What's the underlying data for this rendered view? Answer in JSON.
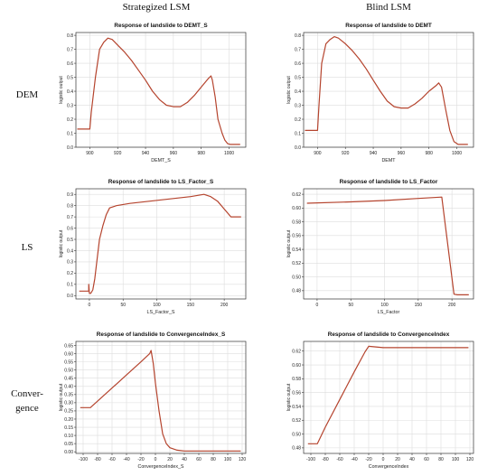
{
  "columns": [
    "Strategized LSM",
    "Blind LSM"
  ],
  "rows": [
    {
      "lines": [
        "DEM"
      ]
    },
    {
      "lines": [
        "LS"
      ]
    },
    {
      "lines": [
        "Conver-",
        "gence"
      ]
    }
  ],
  "colors": {
    "line": "#b5442e",
    "grid": "#dddddd",
    "axis": "#333333"
  },
  "chart_data": [
    {
      "type": "line",
      "title": "Response of landslide to DEMT_S",
      "xlabel": "DEMT_S",
      "ylabel": "logistic output",
      "xlim": [
        890,
        1012
      ],
      "ylim": [
        0,
        0.82
      ],
      "xticks": [
        900,
        920,
        940,
        960,
        980,
        1000
      ],
      "yticks": [
        0,
        0.1,
        0.2,
        0.3,
        0.4,
        0.5,
        0.6,
        0.7,
        0.8
      ],
      "ytick_labels": [
        "0.0",
        "0.1",
        "0.2",
        "0.3",
        "0.4",
        "0.5",
        "0.6",
        "0.7",
        "0.8"
      ],
      "x": [
        891,
        900,
        901,
        904,
        907,
        910,
        913,
        916,
        920,
        925,
        930,
        935,
        940,
        945,
        950,
        955,
        960,
        965,
        970,
        975,
        980,
        985,
        987,
        988,
        990,
        992,
        995,
        997,
        999,
        1001,
        1005,
        1008
      ],
      "y": [
        0.13,
        0.13,
        0.25,
        0.5,
        0.7,
        0.75,
        0.78,
        0.77,
        0.73,
        0.68,
        0.62,
        0.55,
        0.48,
        0.4,
        0.34,
        0.3,
        0.29,
        0.29,
        0.32,
        0.37,
        0.43,
        0.49,
        0.51,
        0.48,
        0.36,
        0.2,
        0.1,
        0.05,
        0.025,
        0.02,
        0.02,
        0.02
      ]
    },
    {
      "type": "line",
      "title": "Response of landslide to DEMT",
      "xlabel": "DEMT",
      "ylabel": "logistic output",
      "xlim": [
        890,
        1012
      ],
      "ylim": [
        0,
        0.82
      ],
      "xticks": [
        900,
        920,
        940,
        960,
        980,
        1000
      ],
      "yticks": [
        0,
        0.1,
        0.2,
        0.3,
        0.4,
        0.5,
        0.6,
        0.7,
        0.8
      ],
      "ytick_labels": [
        "0.0",
        "0.1",
        "0.2",
        "0.3",
        "0.4",
        "0.5",
        "0.6",
        "0.7",
        "0.8"
      ],
      "x": [
        891,
        900,
        901,
        903,
        906,
        909,
        912,
        915,
        920,
        925,
        930,
        935,
        940,
        945,
        950,
        955,
        960,
        965,
        970,
        975,
        980,
        985,
        987,
        989,
        992,
        995,
        998,
        1001,
        1005,
        1008
      ],
      "y": [
        0.12,
        0.12,
        0.3,
        0.6,
        0.74,
        0.77,
        0.79,
        0.78,
        0.74,
        0.69,
        0.63,
        0.56,
        0.48,
        0.4,
        0.33,
        0.29,
        0.28,
        0.28,
        0.31,
        0.35,
        0.4,
        0.44,
        0.46,
        0.43,
        0.27,
        0.12,
        0.04,
        0.02,
        0.02,
        0.02
      ]
    },
    {
      "type": "line",
      "title": "Response of landslide to LS_Factor_S",
      "xlabel": "LS_Factor_S",
      "ylabel": "logistic output",
      "xlim": [
        -20,
        232
      ],
      "ylim": [
        -0.03,
        0.95
      ],
      "xticks": [
        0,
        50,
        100,
        150,
        200
      ],
      "yticks": [
        0,
        0.1,
        0.2,
        0.3,
        0.4,
        0.5,
        0.6,
        0.7,
        0.8,
        0.9
      ],
      "ytick_labels": [
        "0.0",
        "0.1",
        "0.2",
        "0.3",
        "0.4",
        "0.5",
        "0.6",
        "0.7",
        "0.8",
        "0.9"
      ],
      "x": [
        -15,
        -1,
        -1,
        0,
        2,
        5,
        8,
        11,
        15,
        20,
        25,
        30,
        40,
        60,
        90,
        120,
        150,
        170,
        180,
        190,
        200,
        210,
        225
      ],
      "y": [
        0.04,
        0.04,
        0.1,
        0.02,
        0.02,
        0.05,
        0.15,
        0.3,
        0.5,
        0.62,
        0.72,
        0.78,
        0.8,
        0.82,
        0.84,
        0.86,
        0.88,
        0.9,
        0.88,
        0.84,
        0.77,
        0.7,
        0.7
      ]
    },
    {
      "type": "line",
      "title": "Response of landslide to LS_Factor",
      "xlabel": "LS_Factor",
      "ylabel": "logistic output",
      "xlim": [
        -20,
        232
      ],
      "ylim": [
        0.468,
        0.628
      ],
      "xticks": [
        0,
        50,
        100,
        150,
        200
      ],
      "yticks": [
        0.48,
        0.5,
        0.52,
        0.54,
        0.56,
        0.58,
        0.6,
        0.62
      ],
      "ytick_labels": [
        "0.48",
        "0.50",
        "0.52",
        "0.54",
        "0.56",
        "0.58",
        "0.60",
        "0.62"
      ],
      "x": [
        -15,
        50,
        100,
        150,
        185,
        203,
        208,
        225
      ],
      "y": [
        0.607,
        0.609,
        0.611,
        0.614,
        0.616,
        0.475,
        0.474,
        0.474
      ]
    },
    {
      "type": "line",
      "title": "Response of landslide to ConvergenceIndex_S",
      "xlabel": "ConvergenceIndex_S",
      "ylabel": "logistic output",
      "xlim": [
        -110,
        125
      ],
      "ylim": [
        -0.01,
        0.675
      ],
      "xticks": [
        -100,
        -80,
        -60,
        -40,
        -20,
        0,
        20,
        40,
        60,
        80,
        100,
        120
      ],
      "yticks": [
        0,
        0.05,
        0.1,
        0.15,
        0.2,
        0.25,
        0.3,
        0.35,
        0.4,
        0.45,
        0.5,
        0.55,
        0.6,
        0.65
      ],
      "ytick_labels": [
        "0.00",
        "0.05",
        "0.10",
        "0.15",
        "0.20",
        "0.25",
        "0.30",
        "0.35",
        "0.40",
        "0.45",
        "0.50",
        "0.55",
        "0.60",
        "0.65"
      ],
      "x": [
        -104,
        -90,
        -80,
        -60,
        -40,
        -20,
        -8,
        -6,
        -3,
        0,
        5,
        10,
        15,
        20,
        30,
        40,
        60,
        80,
        100,
        118
      ],
      "y": [
        0.27,
        0.27,
        0.31,
        0.39,
        0.47,
        0.55,
        0.6,
        0.62,
        0.54,
        0.42,
        0.25,
        0.11,
        0.05,
        0.025,
        0.01,
        0.005,
        0.005,
        0.005,
        0.005,
        0.005
      ]
    },
    {
      "type": "line",
      "title": "Response of landslide to ConvergenceIndex",
      "xlabel": "ConvergenceIndex",
      "ylabel": "logistic output",
      "xlim": [
        -110,
        125
      ],
      "ylim": [
        0.472,
        0.634
      ],
      "xticks": [
        -100,
        -80,
        -60,
        -40,
        -20,
        0,
        20,
        40,
        60,
        80,
        100,
        120
      ],
      "yticks": [
        0.48,
        0.5,
        0.52,
        0.54,
        0.56,
        0.58,
        0.6,
        0.62
      ],
      "ytick_labels": [
        "0.48",
        "0.50",
        "0.52",
        "0.54",
        "0.56",
        "0.58",
        "0.60",
        "0.62"
      ],
      "x": [
        -104,
        -91,
        -80,
        -60,
        -40,
        -25,
        -20,
        -10,
        0,
        20,
        60,
        100,
        118
      ],
      "y": [
        0.486,
        0.486,
        0.51,
        0.55,
        0.59,
        0.619,
        0.627,
        0.626,
        0.625,
        0.625,
        0.625,
        0.625,
        0.625
      ]
    }
  ]
}
